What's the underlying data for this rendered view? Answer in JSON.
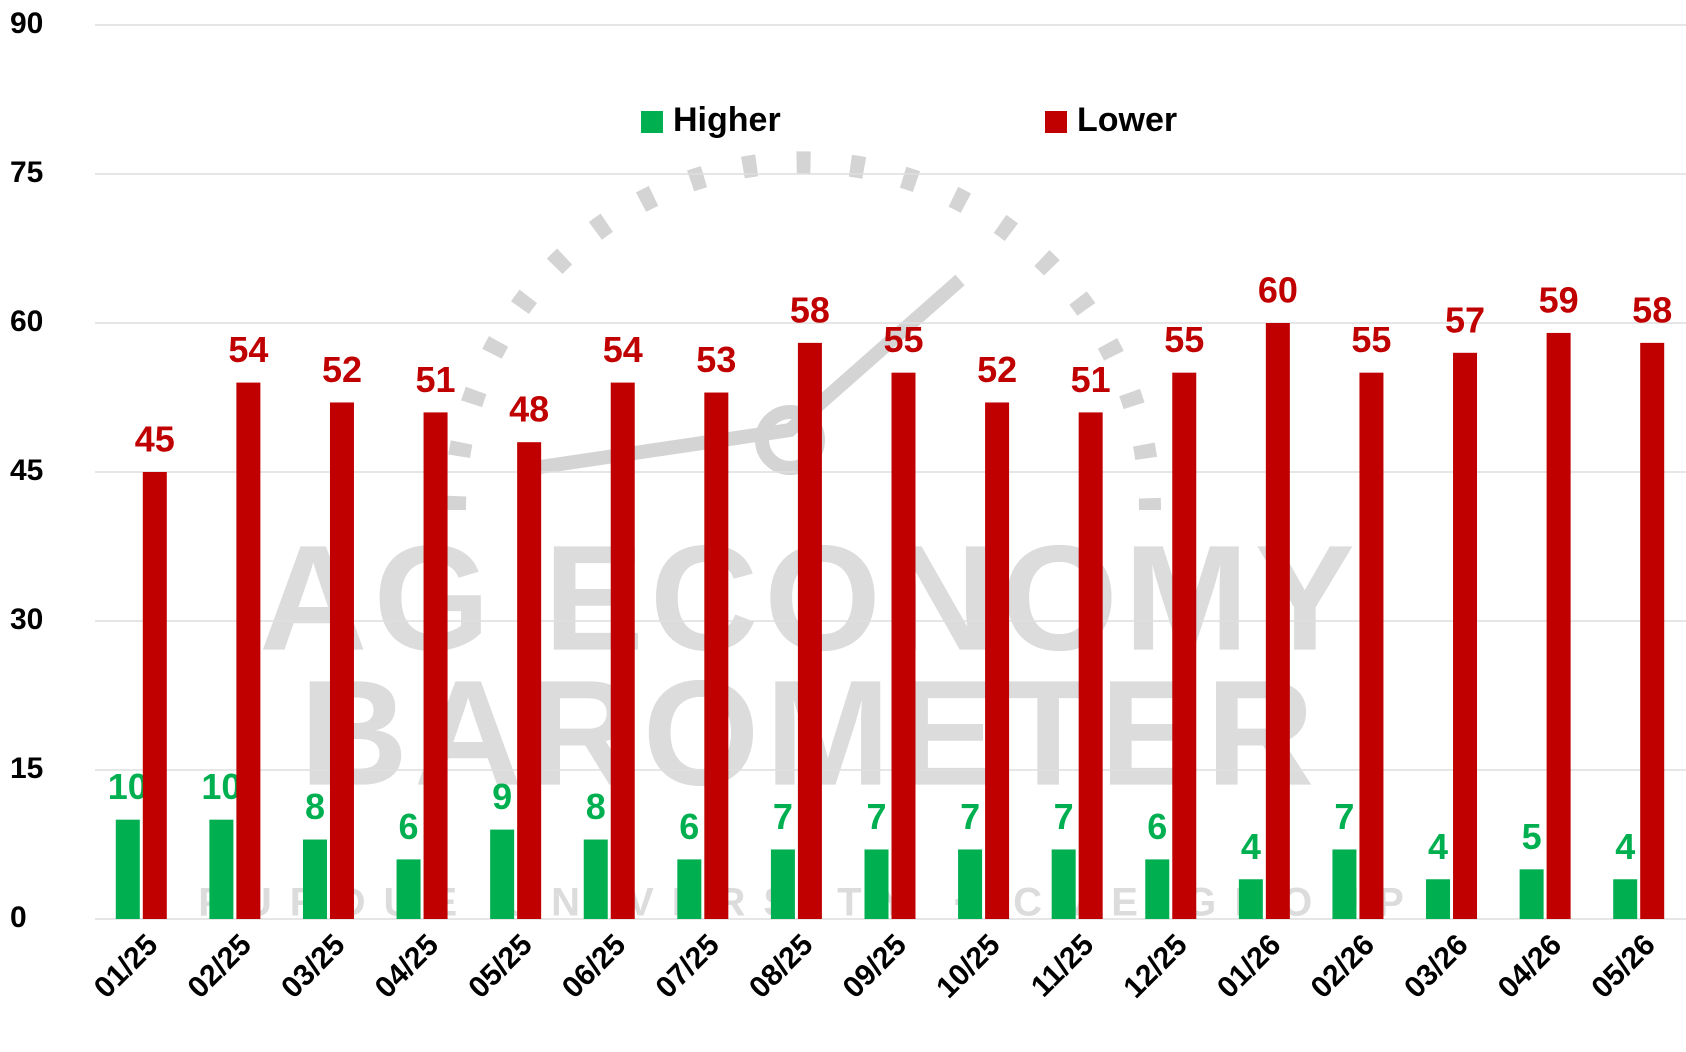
{
  "chart_data": {
    "type": "bar",
    "categories": [
      "01/25",
      "02/25",
      "03/25",
      "04/25",
      "05/25",
      "06/25",
      "07/25",
      "08/25",
      "09/25",
      "10/25",
      "11/25",
      "12/25",
      "01/26",
      "02/26",
      "03/26",
      "04/26",
      "05/26"
    ],
    "series": [
      {
        "name": "Higher",
        "color": "#00b050",
        "values": [
          10,
          10,
          8,
          6,
          9,
          8,
          6,
          7,
          7,
          7,
          7,
          6,
          4,
          7,
          4,
          5,
          4
        ]
      },
      {
        "name": "Lower",
        "color": "#c00000",
        "values": [
          45,
          54,
          52,
          51,
          48,
          54,
          53,
          58,
          55,
          52,
          51,
          55,
          60,
          55,
          57,
          59,
          58
        ]
      }
    ],
    "ylim": [
      0,
      90
    ],
    "yticks": [
      0,
      15,
      30,
      45,
      60,
      75,
      90
    ],
    "grid": true,
    "legend": "top",
    "annotations": [
      "AG ECONOMY",
      "BAROMETER",
      "PURDUE UNIVERSITY · CME GROUP"
    ]
  }
}
